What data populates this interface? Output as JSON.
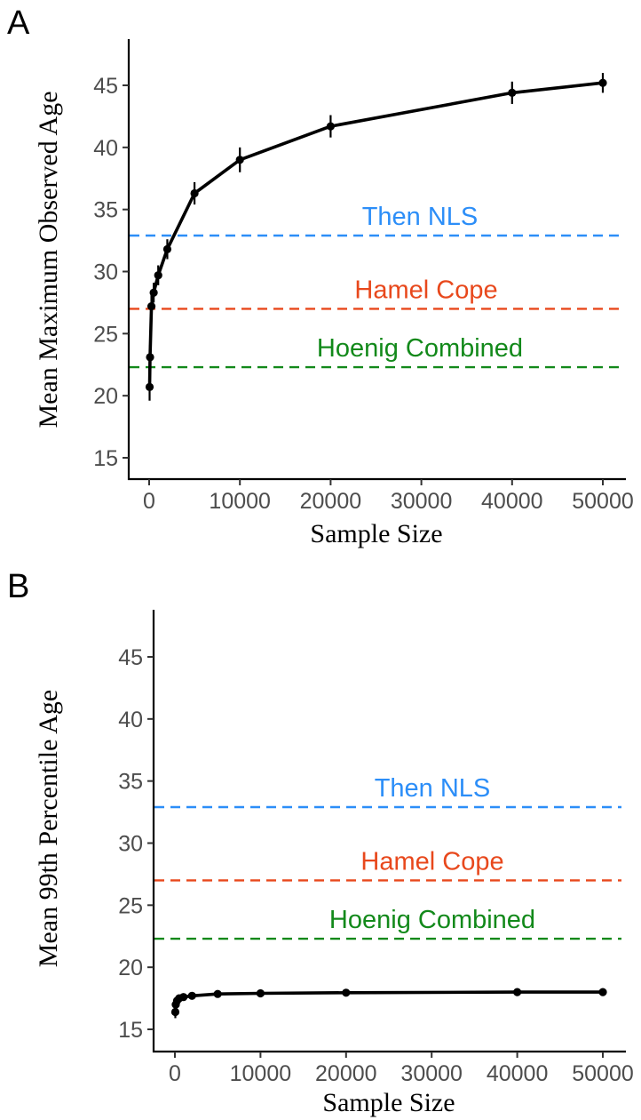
{
  "chart_data": [
    {
      "panel": "A",
      "type": "line",
      "xlabel": "Sample Size",
      "ylabel": "Mean Maximum Observed Age",
      "xlim": [
        -2500,
        52500
      ],
      "ylim": [
        14,
        48
      ],
      "xticks": [
        0,
        10000,
        20000,
        30000,
        40000,
        50000
      ],
      "yticks": [
        15,
        20,
        25,
        30,
        35,
        40,
        45
      ],
      "grid": false,
      "series": [
        {
          "color": "#000000",
          "x": [
            50,
            100,
            250,
            500,
            1000,
            2000,
            5000,
            10000,
            20000,
            40000,
            50000
          ],
          "y": [
            20.7,
            23.1,
            27.2,
            28.3,
            29.7,
            31.8,
            36.3,
            39.0,
            41.7,
            44.4,
            45.2
          ],
          "err": [
            1.1,
            1.0,
            0.9,
            0.8,
            0.8,
            0.8,
            0.9,
            1.0,
            0.9,
            0.9,
            0.8
          ]
        }
      ],
      "reference_lines": [
        {
          "label": "Then NLS",
          "y": 32.9,
          "color": "#2c8ef8"
        },
        {
          "label": "Hamel Cope",
          "y": 27.0,
          "color": "#e8481c"
        },
        {
          "label": "Hoenig Combined",
          "y": 22.3,
          "color": "#12891a"
        }
      ]
    },
    {
      "panel": "B",
      "type": "line",
      "xlabel": "Sample Size",
      "ylabel": "Mean 99th Percentile Age",
      "xlim": [
        -2500,
        52500
      ],
      "ylim": [
        14,
        48
      ],
      "xticks": [
        0,
        10000,
        20000,
        30000,
        40000,
        50000
      ],
      "yticks": [
        15,
        20,
        25,
        30,
        35,
        40,
        45
      ],
      "grid": false,
      "series": [
        {
          "color": "#000000",
          "x": [
            50,
            100,
            250,
            500,
            1000,
            2000,
            5000,
            10000,
            20000,
            40000,
            50000
          ],
          "y": [
            16.4,
            17.0,
            17.3,
            17.5,
            17.6,
            17.7,
            17.85,
            17.9,
            17.95,
            18.0,
            18.0
          ],
          "err": [
            0.5,
            0.4,
            0.3,
            0.25,
            0.2,
            0.15,
            0.12,
            0.1,
            0.1,
            0.08,
            0.08
          ]
        }
      ],
      "reference_lines": [
        {
          "label": "Then NLS",
          "y": 32.9,
          "color": "#2c8ef8"
        },
        {
          "label": "Hamel Cope",
          "y": 27.0,
          "color": "#e8481c"
        },
        {
          "label": "Hoenig Combined",
          "y": 22.3,
          "color": "#12891a"
        }
      ]
    }
  ]
}
